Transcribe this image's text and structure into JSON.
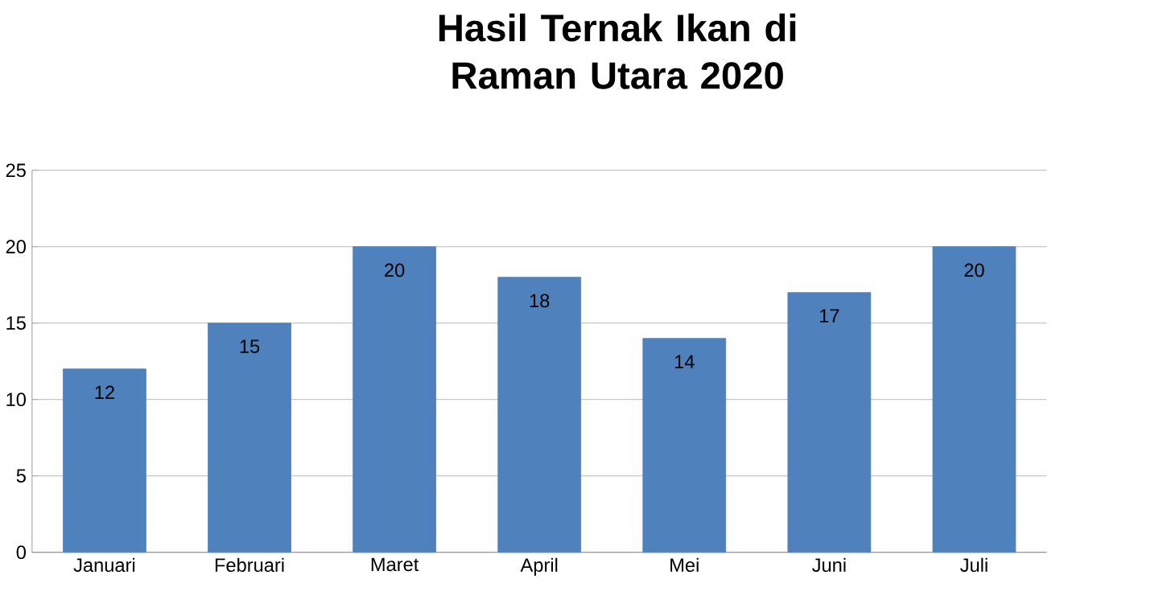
{
  "chart_data": {
    "type": "bar",
    "title": "Hasil Ternak Ikan di Raman Utara 2020",
    "categories": [
      "Januari",
      "Februari",
      "Maret",
      "April",
      "Mei",
      "Juni",
      "Juli"
    ],
    "values": [
      12,
      15,
      20,
      18,
      14,
      17,
      20
    ],
    "color": "#4f81bd",
    "ylim": [
      0,
      25
    ],
    "yticks": [
      0,
      5,
      10,
      15,
      20,
      25
    ],
    "grid": "y",
    "data_labels": true
  }
}
